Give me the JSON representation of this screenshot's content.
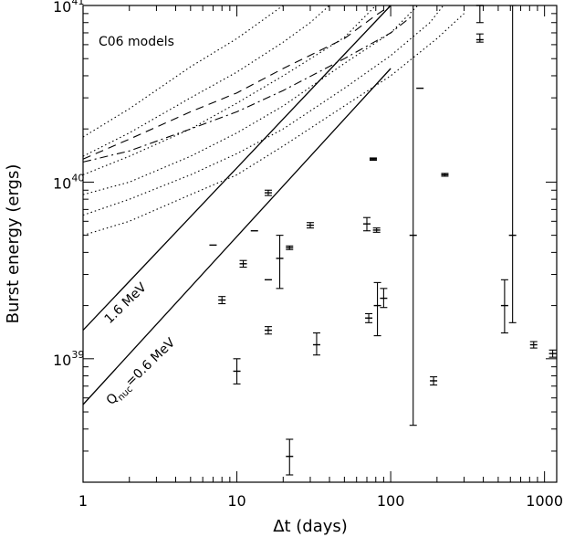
{
  "chart_data": {
    "type": "scatter",
    "xlabel": "Δt (days)",
    "ylabel": "Burst energy (ergs)",
    "xscale": "log",
    "yscale": "log",
    "xlim": [
      1,
      1200
    ],
    "ylim": [
      2e+38,
      1e+41
    ],
    "x_ticks": [
      {
        "value": 1,
        "label": "1"
      },
      {
        "value": 10,
        "label": "10"
      },
      {
        "value": 100,
        "label": "100"
      },
      {
        "value": 1000,
        "label": "1000"
      }
    ],
    "y_ticks": [
      {
        "value": 1e+39,
        "base": "10",
        "exp": "39"
      },
      {
        "value": 1e+40,
        "base": "10",
        "exp": "40"
      },
      {
        "value": 1e+41,
        "base": "10",
        "exp": "41"
      }
    ],
    "annotations": {
      "models": "C06 models",
      "line_high": "1.6 MeV",
      "line_low_prefix": "Q",
      "line_low_sub": "nuc",
      "line_low_suffix": "=0.6 MeV"
    },
    "reference_lines": [
      {
        "style": "solid",
        "points": [
          [
            1,
            1.45e+39
          ],
          [
            100,
            1e+41
          ]
        ]
      },
      {
        "style": "solid",
        "points": [
          [
            1,
            5.5e+38
          ],
          [
            100,
            4.4e+40
          ]
        ]
      }
    ],
    "model_curves": [
      {
        "style": "dotted",
        "points": [
          [
            1,
            1.8e+40
          ],
          [
            2,
            2.6e+40
          ],
          [
            5,
            4.5e+40
          ],
          [
            10,
            6.5e+40
          ],
          [
            20,
            1e+41
          ]
        ]
      },
      {
        "style": "dotted",
        "points": [
          [
            1,
            1.4e+40
          ],
          [
            2,
            1.9e+40
          ],
          [
            5,
            3e+40
          ],
          [
            10,
            4.2e+40
          ],
          [
            20,
            6.2e+40
          ],
          [
            30,
            8e+40
          ],
          [
            40,
            1e+41
          ]
        ]
      },
      {
        "style": "dotted",
        "points": [
          [
            1,
            1.1e+40
          ],
          [
            2,
            1.4e+40
          ],
          [
            5,
            2e+40
          ],
          [
            10,
            2.8e+40
          ],
          [
            20,
            4e+40
          ],
          [
            50,
            6.6e+40
          ],
          [
            80,
            1e+41
          ]
        ]
      },
      {
        "style": "dotted",
        "points": [
          [
            1,
            8.5e+39
          ],
          [
            2,
            1e+40
          ],
          [
            5,
            1.4e+40
          ],
          [
            10,
            1.9e+40
          ],
          [
            20,
            2.7e+40
          ],
          [
            50,
            4.7e+40
          ],
          [
            100,
            7e+40
          ],
          [
            150,
            1e+41
          ]
        ]
      },
      {
        "style": "dotted",
        "points": [
          [
            1,
            6.5e+39
          ],
          [
            2,
            8e+39
          ],
          [
            5,
            1.1e+40
          ],
          [
            10,
            1.45e+40
          ],
          [
            20,
            2e+40
          ],
          [
            50,
            3.4e+40
          ],
          [
            100,
            5.2e+40
          ],
          [
            180,
            8e+40
          ],
          [
            220,
            1e+41
          ]
        ]
      },
      {
        "style": "dotted",
        "points": [
          [
            1,
            5e+39
          ],
          [
            2,
            6e+39
          ],
          [
            5,
            8.5e+39
          ],
          [
            10,
            1.1e+40
          ],
          [
            20,
            1.6e+40
          ],
          [
            50,
            2.7e+40
          ],
          [
            100,
            4e+40
          ],
          [
            200,
            6.5e+40
          ],
          [
            300,
            9e+40
          ]
        ]
      },
      {
        "style": "dashed",
        "points": [
          [
            1,
            1.35e+40
          ],
          [
            2,
            1.75e+40
          ],
          [
            5,
            2.5e+40
          ],
          [
            10,
            3.2e+40
          ],
          [
            20,
            4.4e+40
          ],
          [
            50,
            6.5e+40
          ],
          [
            80,
            8.8e+40
          ],
          [
            100,
            1e+41
          ]
        ]
      },
      {
        "style": "dashdot",
        "points": [
          [
            1,
            1.3e+40
          ],
          [
            2,
            1.5e+40
          ],
          [
            5,
            2e+40
          ],
          [
            10,
            2.5e+40
          ],
          [
            20,
            3.3e+40
          ],
          [
            50,
            5e+40
          ],
          [
            100,
            7e+40
          ],
          [
            140,
            8.8e+40
          ]
        ]
      }
    ],
    "points": [
      {
        "x": 7.0,
        "y": 4.4e+39,
        "lo": 4.4e+39,
        "hi": 4.4e+39
      },
      {
        "x": 8.0,
        "y": 2.15e+39,
        "lo": 2.05e+39,
        "hi": 2.25e+39
      },
      {
        "x": 10.0,
        "y": 8.5e+38,
        "lo": 7.2e+38,
        "hi": 1e+39
      },
      {
        "x": 11.0,
        "y": 3.45e+39,
        "lo": 3.3e+39,
        "hi": 3.6e+39
      },
      {
        "x": 13.0,
        "y": 5.3e+39,
        "lo": 5.3e+39,
        "hi": 5.3e+39
      },
      {
        "x": 16.0,
        "y": 8.7e+39,
        "lo": 8.4e+39,
        "hi": 9e+39
      },
      {
        "x": 16.0,
        "y": 2.8e+39,
        "lo": 2.8e+39,
        "hi": 2.8e+39
      },
      {
        "x": 16.0,
        "y": 1.45e+39,
        "lo": 1.38e+39,
        "hi": 1.52e+39
      },
      {
        "x": 19.0,
        "y": 3.7e+39,
        "lo": 2.5e+39,
        "hi": 5e+39
      },
      {
        "x": 22.0,
        "y": 4.25e+39,
        "lo": 4.15e+39,
        "hi": 4.35e+39
      },
      {
        "x": 22.0,
        "y": 2.8e+38,
        "lo": 2.2e+38,
        "hi": 3.5e+38
      },
      {
        "x": 30.0,
        "y": 5.7e+39,
        "lo": 5.5e+39,
        "hi": 5.9e+39
      },
      {
        "x": 33.0,
        "y": 1.2e+39,
        "lo": 1.05e+39,
        "hi": 1.4e+39
      },
      {
        "x": 70.0,
        "y": 5.8e+39,
        "lo": 5.3e+39,
        "hi": 6.3e+39
      },
      {
        "x": 72.0,
        "y": 1.7e+39,
        "lo": 1.6e+39,
        "hi": 1.8e+39
      },
      {
        "x": 77.0,
        "y": 1.35e+40,
        "lo": 1.33e+40,
        "hi": 1.37e+40
      },
      {
        "x": 81.0,
        "y": 5.35e+39,
        "lo": 5.2e+39,
        "hi": 5.5e+39
      },
      {
        "x": 82.0,
        "y": 2e+39,
        "lo": 1.35e+39,
        "hi": 2.7e+39
      },
      {
        "x": 90.0,
        "y": 2.2e+39,
        "lo": 1.95e+39,
        "hi": 2.5e+39
      },
      {
        "x": 140.0,
        "y": 5e+39,
        "lo": 4.2e+38,
        "hi": 1e+41
      },
      {
        "x": 155.0,
        "y": 3.4e+40,
        "lo": 3.4e+40,
        "hi": 3.4e+40
      },
      {
        "x": 190.0,
        "y": 7.5e+38,
        "lo": 7.1e+38,
        "hi": 7.9e+38
      },
      {
        "x": 225.0,
        "y": 1.1e+40,
        "lo": 1.08e+40,
        "hi": 1.12e+40
      },
      {
        "x": 380.0,
        "y": 6.4e+40,
        "lo": 6.2e+40,
        "hi": 6.9e+40
      },
      {
        "x": 380.0,
        "y": 1e+41,
        "lo": 8e+40,
        "hi": 1e+41
      },
      {
        "x": 550.0,
        "y": 2e+39,
        "lo": 1.4e+39,
        "hi": 2.8e+39
      },
      {
        "x": 620.0,
        "y": 5e+39,
        "lo": 1.6e+39,
        "hi": 1e+41
      },
      {
        "x": 850.0,
        "y": 1.2e+39,
        "lo": 1.15e+39,
        "hi": 1.25e+39
      },
      {
        "x": 1130.0,
        "y": 1.07e+39,
        "lo": 1.02e+39,
        "hi": 1.12e+39
      }
    ]
  }
}
